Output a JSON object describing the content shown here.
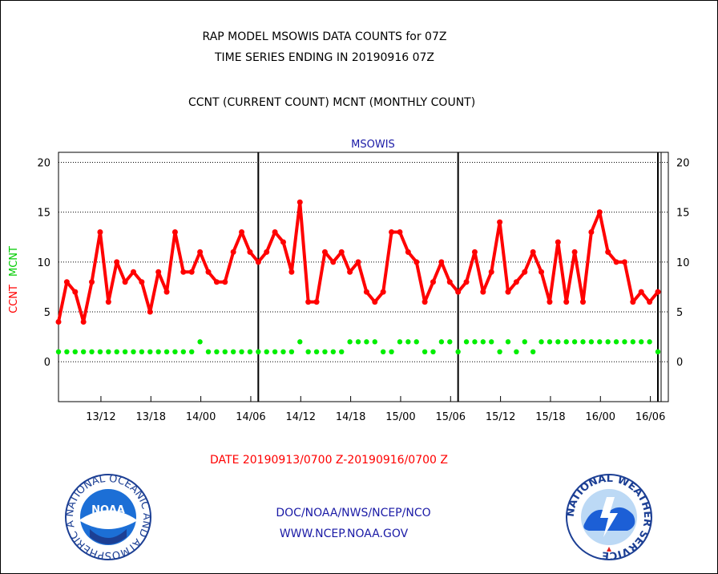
{
  "header": {
    "title_line1": "RAP MODEL MSOWIS DATA COUNTS for 07Z",
    "title_line2": "TIME SERIES ENDING IN 20190916 07Z",
    "subtitle": "CCNT (CURRENT COUNT) MCNT (MONTHLY COUNT)"
  },
  "chart_data": {
    "type": "line",
    "title": "MSOWIS",
    "ylabel_ccnt": "CCNT",
    "ylabel_mcnt": "MCNT",
    "ylim": [
      -4,
      21
    ],
    "yticks": [
      0,
      5,
      10,
      15,
      20
    ],
    "grid": true,
    "xlabel": "DATE 20190913/0700 Z-20190916/0700 Z",
    "x_tick_labels": [
      "13/12",
      "13/18",
      "14/00",
      "14/06",
      "14/12",
      "14/18",
      "15/00",
      "15/06",
      "15/12",
      "15/18",
      "16/00",
      "16/06"
    ],
    "series": [
      {
        "name": "CCNT",
        "color": "#ff0000",
        "values": [
          4,
          8,
          7,
          4,
          8,
          13,
          6,
          10,
          8,
          9,
          8,
          5,
          9,
          7,
          13,
          9,
          9,
          11,
          9,
          8,
          8,
          11,
          13,
          11,
          10,
          11,
          13,
          12,
          9,
          16,
          6,
          6,
          11,
          10,
          11,
          9,
          10,
          7,
          6,
          7,
          13,
          13,
          11,
          10,
          6,
          8,
          10,
          8,
          7,
          8,
          11,
          7,
          9,
          14,
          7,
          8,
          9,
          11,
          9,
          6,
          12,
          6,
          11,
          6,
          13,
          15,
          11,
          10,
          10,
          6,
          7,
          6,
          7
        ]
      },
      {
        "name": "MCNT",
        "color": "#00ee00",
        "values": [
          1,
          1,
          1,
          1,
          1,
          1,
          1,
          1,
          1,
          1,
          1,
          1,
          1,
          1,
          1,
          1,
          1,
          2,
          1,
          1,
          1,
          1,
          1,
          1,
          1,
          1,
          1,
          1,
          1,
          2,
          1,
          1,
          1,
          1,
          1,
          2,
          2,
          2,
          2,
          1,
          1,
          2,
          2,
          2,
          1,
          1,
          2,
          2,
          1,
          2,
          2,
          2,
          2,
          1,
          2,
          1,
          2,
          1,
          2,
          2,
          2,
          2,
          2,
          2,
          2,
          2,
          2,
          2,
          2,
          2,
          2,
          2,
          1
        ]
      }
    ]
  },
  "footer": {
    "line1": "DOC/NOAA/NWS/NCEP/NCO",
    "line2": "WWW.NCEP.NOAA.GOV"
  },
  "logos": {
    "left": "noaa-logo",
    "left_ring_text": "NATIONAL OCEANIC AND ATMOSPHERIC ADMINISTRATION · U.S. DEPARTMENT OF COMMERCE",
    "left_center_text": "NOAA",
    "right": "nws-logo",
    "right_ring_text": "NATIONAL WEATHER SERVICE"
  },
  "colors": {
    "ccnt": "#ff0000",
    "mcnt": "#00ee00",
    "header_text": "#000000",
    "footer_text": "#1a1aa6",
    "xlabel_text": "#ff0000"
  }
}
